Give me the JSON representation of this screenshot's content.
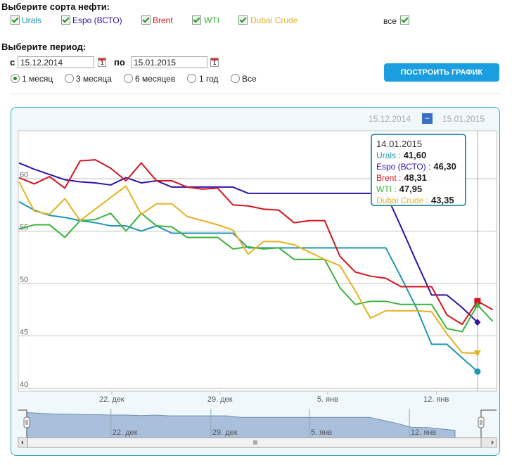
{
  "filters": {
    "grades_heading": "Выберите сорта нефти:",
    "grades": [
      {
        "label": "Urals",
        "checked": true,
        "color": "#1e96b4"
      },
      {
        "label": "Espo (ВСТО)",
        "checked": true,
        "color": "#3311aa"
      },
      {
        "label": "Brent",
        "checked": true,
        "color": "#d4141e"
      },
      {
        "label": "WTI",
        "checked": true,
        "color": "#3cb43c"
      },
      {
        "label": "Dubai Crude",
        "checked": true,
        "color": "#e8b020"
      }
    ],
    "all_label": "все",
    "all_checked": true,
    "period_heading": "Выберите период:",
    "from_label": "с",
    "from_value": "15.12.2014",
    "to_label": "по",
    "to_value": "15.01.2015",
    "periods": [
      {
        "label": "1 месяц",
        "selected": true
      },
      {
        "label": "3 месяца",
        "selected": false
      },
      {
        "label": "6 месяцев",
        "selected": false
      },
      {
        "label": "1 год",
        "selected": false
      },
      {
        "label": "Все",
        "selected": false
      }
    ],
    "build_button": "ПОСТРОИТЬ ГРАФИК"
  },
  "range_selector": {
    "from": "15.12.2014",
    "separator": "–",
    "to": "15.01.2015"
  },
  "tooltip": {
    "date": "14.01.2015",
    "rows": [
      {
        "name": "Urals",
        "value": "41,60"
      },
      {
        "name": "Espo (ВСТО)",
        "value": "46,30"
      },
      {
        "name": "Brent",
        "value": "48,31"
      },
      {
        "name": "WTI",
        "value": "47,95"
      },
      {
        "name": "Dubai Crude",
        "value": "43,35"
      }
    ]
  },
  "chart_data": {
    "type": "line",
    "ylim": [
      40,
      62
    ],
    "yticks": [
      "40",
      "45",
      "50",
      "55",
      "60"
    ],
    "xticks": [
      "22. дек",
      "29. дек",
      "5. янв",
      "12. янв"
    ],
    "navigator_ticks": [
      "22. дек",
      "29. дек",
      "5. янв",
      "12. янв"
    ],
    "grid": true,
    "x": [
      "15.12",
      "16.12",
      "17.12",
      "18.12",
      "19.12",
      "20.12",
      "21.12",
      "22.12",
      "23.12",
      "24.12",
      "25.12",
      "26.12",
      "27.12",
      "28.12",
      "29.12",
      "30.12",
      "31.12",
      "01.01",
      "02.01",
      "03.01",
      "04.01",
      "05.01",
      "06.01",
      "07.01",
      "08.01",
      "09.01",
      "10.01",
      "11.01",
      "12.01",
      "13.01",
      "14.01",
      "15.01"
    ],
    "series": [
      {
        "name": "Urals",
        "color": "#1e96b4",
        "marker": "circle",
        "values": [
          57.8,
          57.0,
          56.5,
          56.3,
          56.0,
          55.8,
          55.5,
          55.5,
          55.0,
          55.5,
          54.8,
          54.8,
          54.8,
          54.8,
          54.8,
          53.4,
          53.4,
          53.4,
          53.4,
          53.4,
          53.4,
          53.4,
          53.4,
          53.4,
          53.4,
          50.6,
          47.7,
          44.2,
          44.2,
          42.9,
          41.6,
          null
        ]
      },
      {
        "name": "Espo (ВСТО)",
        "color": "#3311aa",
        "marker": "diamond",
        "values": [
          61.5,
          60.9,
          60.4,
          59.9,
          59.7,
          59.6,
          59.4,
          60.1,
          59.6,
          59.8,
          59.2,
          59.2,
          59.2,
          59.2,
          59.2,
          58.6,
          58.6,
          58.6,
          58.6,
          58.6,
          58.6,
          58.6,
          58.6,
          58.6,
          58.6,
          55.4,
          52.1,
          48.9,
          48.9,
          47.7,
          46.3,
          null
        ]
      },
      {
        "name": "Brent",
        "color": "#d4141e",
        "marker": "square",
        "values": [
          60.1,
          59.5,
          60.2,
          59.1,
          61.7,
          61.8,
          61.0,
          59.8,
          61.5,
          59.8,
          59.8,
          59.2,
          59.0,
          59.1,
          57.5,
          57.4,
          57.1,
          57.0,
          55.8,
          56.0,
          56.0,
          52.6,
          51.1,
          50.7,
          50.5,
          49.7,
          49.7,
          49.7,
          47.0,
          46.1,
          48.31,
          47.5
        ]
      },
      {
        "name": "WTI",
        "color": "#3cb43c",
        "marker": "triangle",
        "values": [
          55.2,
          55.6,
          55.6,
          54.4,
          56.0,
          56.1,
          56.7,
          55.0,
          56.7,
          55.5,
          55.4,
          54.4,
          54.4,
          54.4,
          53.3,
          53.5,
          53.3,
          53.4,
          52.3,
          52.3,
          52.3,
          49.6,
          48.0,
          48.3,
          48.3,
          48.0,
          48.0,
          48.0,
          45.7,
          45.4,
          47.95,
          46.4
        ]
      },
      {
        "name": "Dubai Crude",
        "color": "#e8b020",
        "marker": "triangle-down",
        "values": [
          59.7,
          56.9,
          56.6,
          58.1,
          56.0,
          57.1,
          58.2,
          59.3,
          56.6,
          57.6,
          57.6,
          56.4,
          56.0,
          55.6,
          55.1,
          52.8,
          54.0,
          54.0,
          53.7,
          53.0,
          52.3,
          51.7,
          49.3,
          46.7,
          47.4,
          47.4,
          47.4,
          47.3,
          45.2,
          43.4,
          43.35,
          null
        ]
      }
    ],
    "highlighted": "14.01"
  }
}
